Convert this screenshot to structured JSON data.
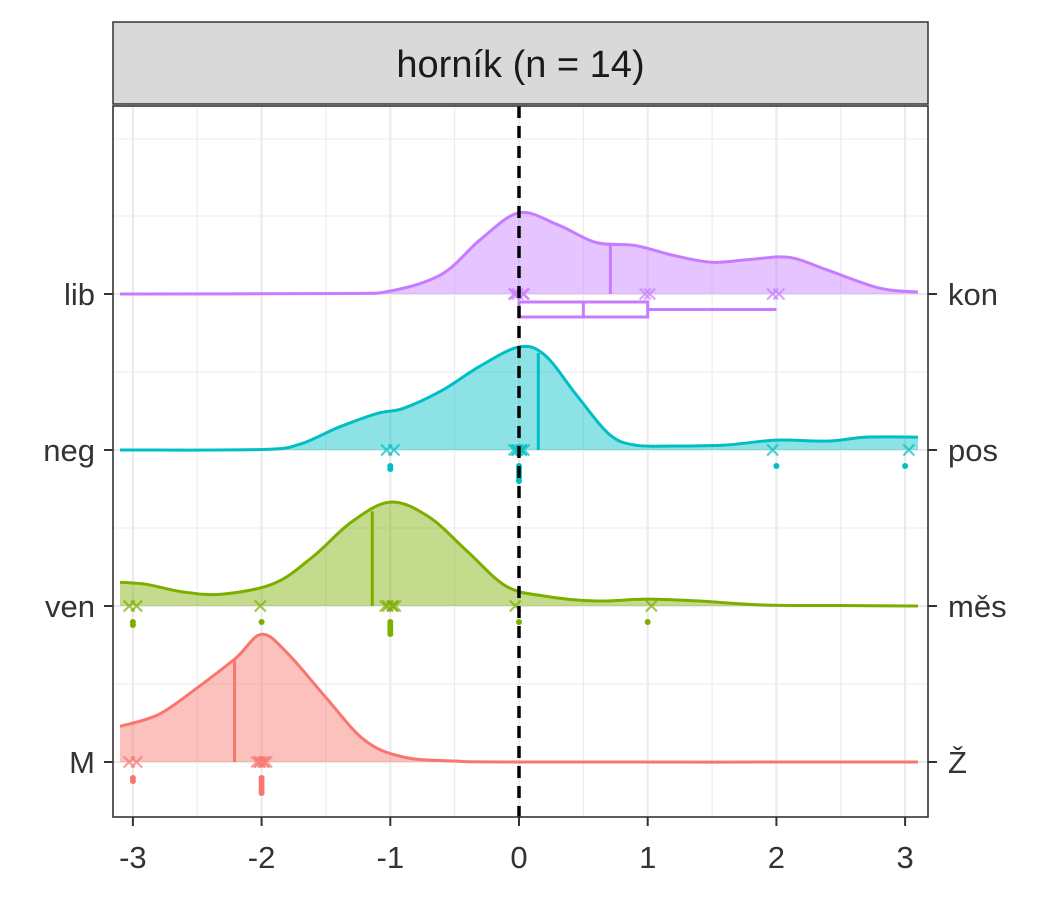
{
  "chart_data": {
    "type": "ridgeline",
    "facet_title": "horník (n = 14)",
    "xlim": [
      -3.1,
      3.1
    ],
    "x_ticks": [
      "-3",
      "-2",
      "-1",
      "0",
      "1",
      "2",
      "3"
    ],
    "reference_line_x": 0,
    "grid": true,
    "rows": [
      {
        "left_label": "lib",
        "right_label": "kon",
        "color": "#C77CFF",
        "mean": 0.71,
        "density": [
          [
            -3.1,
            0
          ],
          [
            -1.4,
            0.005
          ],
          [
            -1.0,
            0.03
          ],
          [
            -0.6,
            0.2
          ],
          [
            -0.3,
            0.55
          ],
          [
            0.0,
            0.82
          ],
          [
            0.3,
            0.7
          ],
          [
            0.6,
            0.52
          ],
          [
            0.9,
            0.49
          ],
          [
            1.2,
            0.39
          ],
          [
            1.5,
            0.32
          ],
          [
            1.8,
            0.35
          ],
          [
            2.1,
            0.37
          ],
          [
            2.4,
            0.24
          ],
          [
            2.8,
            0.06
          ],
          [
            3.1,
            0.02
          ]
        ],
        "points": [
          0,
          0,
          0,
          0,
          0,
          1,
          1,
          2,
          2
        ],
        "boxplot": {
          "q1": 0,
          "median": 0.5,
          "q3": 1,
          "whisker_low": 0,
          "whisker_high": 2
        }
      },
      {
        "left_label": "neg",
        "right_label": "pos",
        "color": "#00BFC4",
        "mean": 0.15,
        "density": [
          [
            -3.1,
            0
          ],
          [
            -2.0,
            0.005
          ],
          [
            -1.7,
            0.06
          ],
          [
            -1.4,
            0.23
          ],
          [
            -1.1,
            0.37
          ],
          [
            -0.9,
            0.42
          ],
          [
            -0.6,
            0.6
          ],
          [
            -0.3,
            0.85
          ],
          [
            0.0,
            1.04
          ],
          [
            0.2,
            0.96
          ],
          [
            0.45,
            0.55
          ],
          [
            0.7,
            0.16
          ],
          [
            0.9,
            0.05
          ],
          [
            1.2,
            0.04
          ],
          [
            1.6,
            0.05
          ],
          [
            2.0,
            0.1
          ],
          [
            2.4,
            0.09
          ],
          [
            2.7,
            0.13
          ],
          [
            3.1,
            0.13
          ]
        ],
        "points": [
          -1,
          -1,
          0,
          0,
          0,
          0,
          0,
          0,
          2,
          3
        ]
      },
      {
        "left_label": "ven",
        "right_label": "měs",
        "color": "#7CAE00",
        "mean": -1.14,
        "density": [
          [
            -3.1,
            0.24
          ],
          [
            -2.9,
            0.22
          ],
          [
            -2.6,
            0.14
          ],
          [
            -2.3,
            0.12
          ],
          [
            -1.9,
            0.23
          ],
          [
            -1.6,
            0.5
          ],
          [
            -1.3,
            0.85
          ],
          [
            -1.0,
            1.05
          ],
          [
            -0.7,
            0.9
          ],
          [
            -0.4,
            0.55
          ],
          [
            -0.1,
            0.2
          ],
          [
            0.2,
            0.1
          ],
          [
            0.6,
            0.05
          ],
          [
            1.0,
            0.07
          ],
          [
            1.4,
            0.05
          ],
          [
            1.9,
            0.01
          ],
          [
            2.5,
            0.005
          ],
          [
            3.1,
            0
          ]
        ],
        "points": [
          -3,
          -3,
          -2,
          -1,
          -1,
          -1,
          -1,
          -1,
          0,
          1
        ]
      },
      {
        "left_label": "M",
        "right_label": "Ž",
        "color": "#F8766D",
        "mean": -2.21,
        "density": [
          [
            -3.1,
            0.36
          ],
          [
            -2.8,
            0.48
          ],
          [
            -2.5,
            0.75
          ],
          [
            -2.2,
            1.05
          ],
          [
            -2.0,
            1.29
          ],
          [
            -1.8,
            1.1
          ],
          [
            -1.5,
            0.65
          ],
          [
            -1.2,
            0.22
          ],
          [
            -0.9,
            0.05
          ],
          [
            -0.5,
            0.01
          ],
          [
            0.0,
            0
          ],
          [
            3.1,
            0
          ]
        ],
        "points": [
          -3,
          -3,
          -2,
          -2,
          -2,
          -2,
          -2,
          -2
        ]
      }
    ]
  }
}
